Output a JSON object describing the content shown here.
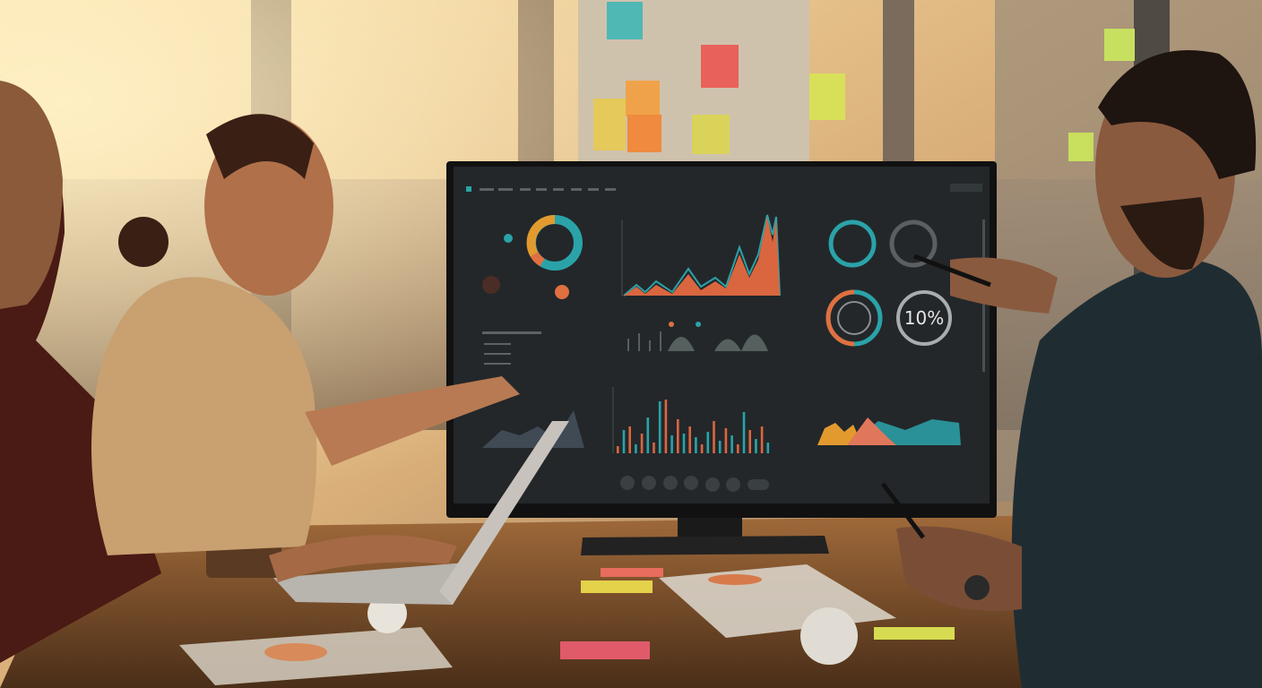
{
  "scene": {
    "description_type": "photo",
    "colors": {
      "sky": "#f2c27a",
      "screen_bg": "#23272a",
      "accent_teal": "#2aa3a8",
      "accent_orange": "#e0703f",
      "accent_amber": "#e29a2e",
      "table": "#8a5a33"
    }
  },
  "monitor": {
    "gauge_label": "10%"
  }
}
